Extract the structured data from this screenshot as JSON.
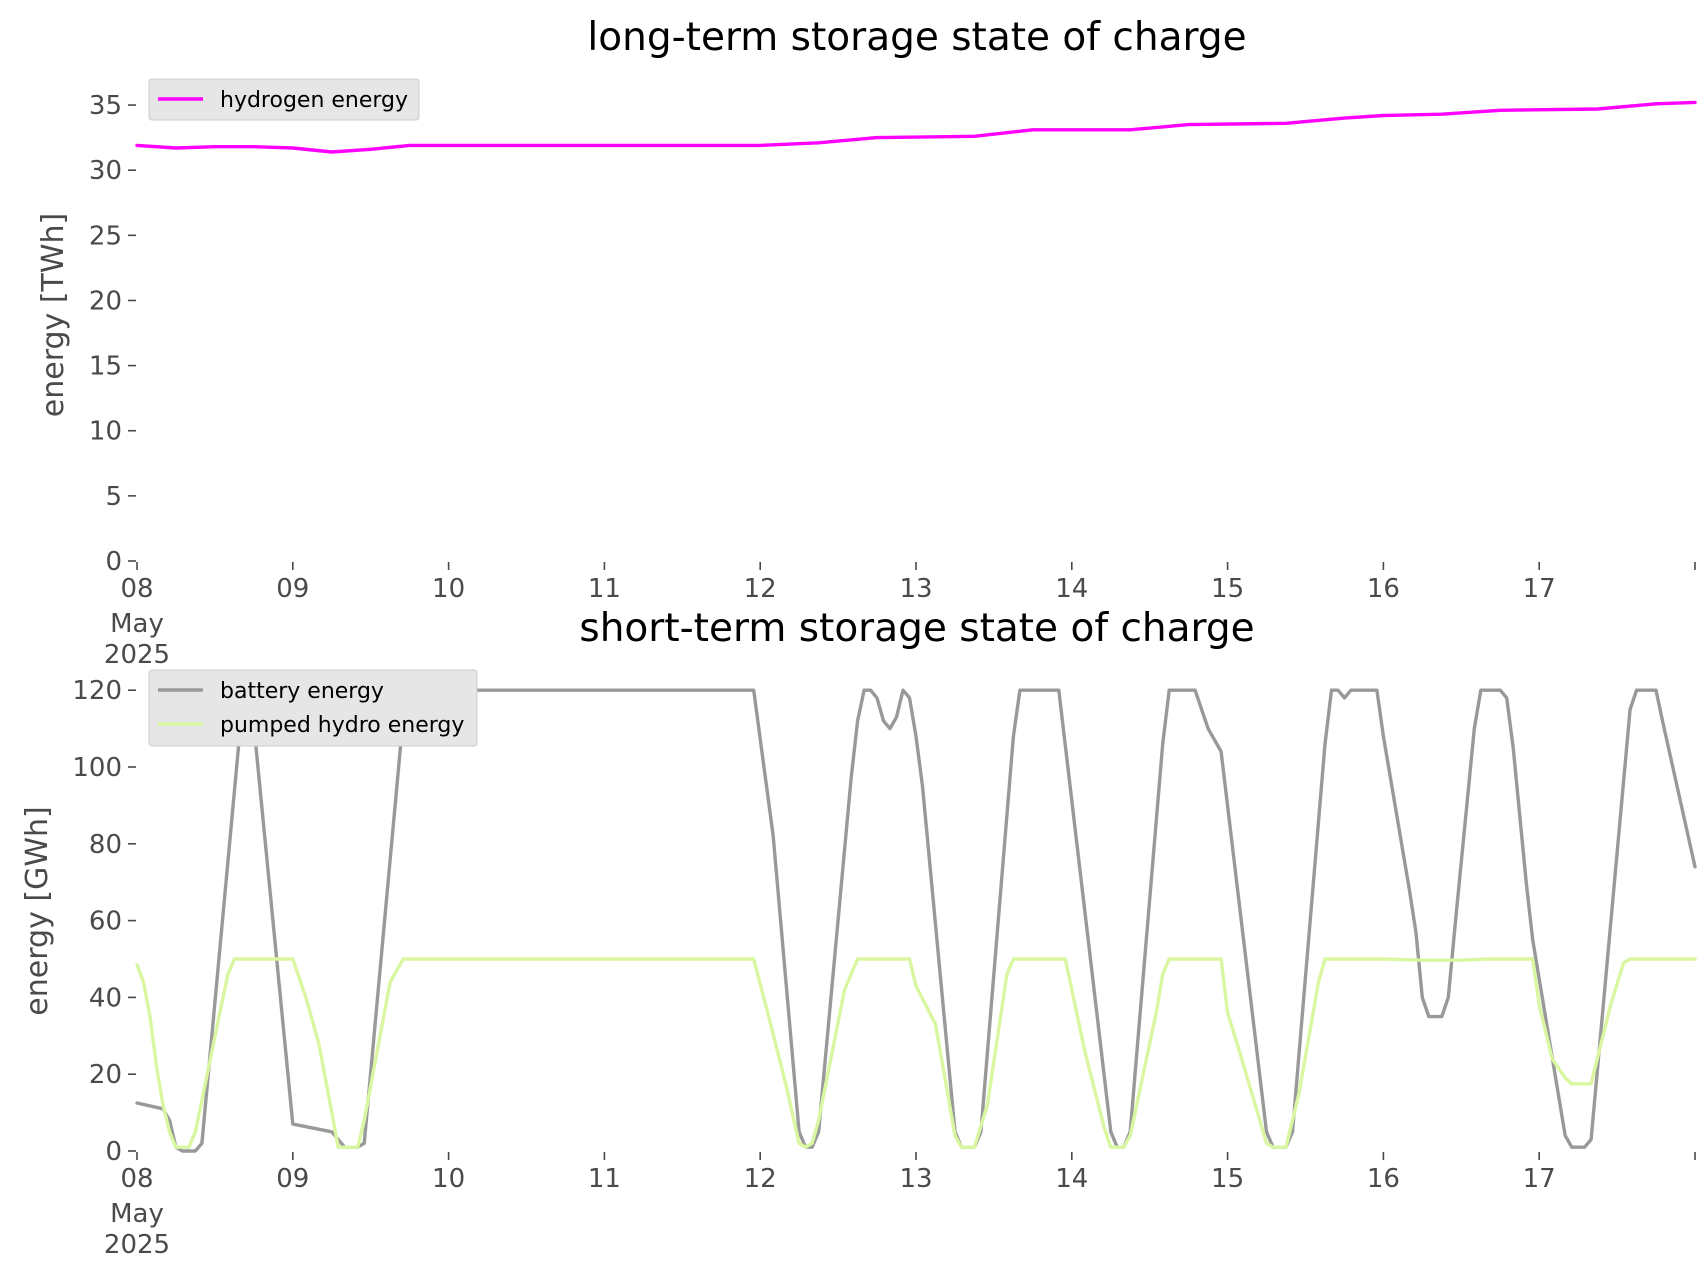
{
  "chart_data": [
    {
      "type": "line",
      "title": "long-term storage state of charge",
      "ylabel": "energy [TWh]",
      "xlabel": "",
      "x_date_range": [
        "2025-05-08T00:00",
        "2025-05-18T00:00"
      ],
      "xticks": [
        {
          "date": "2025-05-08",
          "label": "08",
          "sublabels": [
            "May",
            "2025"
          ]
        },
        {
          "date": "2025-05-09",
          "label": "09"
        },
        {
          "date": "2025-05-10",
          "label": "10"
        },
        {
          "date": "2025-05-11",
          "label": "11"
        },
        {
          "date": "2025-05-12",
          "label": "12"
        },
        {
          "date": "2025-05-13",
          "label": "13"
        },
        {
          "date": "2025-05-14",
          "label": "14"
        },
        {
          "date": "2025-05-15",
          "label": "15"
        },
        {
          "date": "2025-05-16",
          "label": "16"
        },
        {
          "date": "2025-05-17",
          "label": "17"
        },
        {
          "date": "2025-05-18",
          "label": ""
        }
      ],
      "ylim": [
        0,
        37
      ],
      "yticks": [
        0,
        5,
        10,
        15,
        20,
        25,
        30,
        35
      ],
      "grid": false,
      "legend_position": "upper-left",
      "series": [
        {
          "name": "hydrogen energy",
          "color": "#ff00ff",
          "points": [
            [
              "2025-05-08T00:00",
              31.9
            ],
            [
              "2025-05-08T06:00",
              31.7
            ],
            [
              "2025-05-08T12:00",
              31.8
            ],
            [
              "2025-05-08T18:00",
              31.8
            ],
            [
              "2025-05-09T00:00",
              31.7
            ],
            [
              "2025-05-09T06:00",
              31.4
            ],
            [
              "2025-05-09T12:00",
              31.6
            ],
            [
              "2025-05-09T18:00",
              31.9
            ],
            [
              "2025-05-10T00:00",
              31.9
            ],
            [
              "2025-05-11T00:00",
              31.9
            ],
            [
              "2025-05-12T00:00",
              31.9
            ],
            [
              "2025-05-12T09:00",
              32.1
            ],
            [
              "2025-05-12T18:00",
              32.5
            ],
            [
              "2025-05-13T09:00",
              32.6
            ],
            [
              "2025-05-13T18:00",
              33.1
            ],
            [
              "2025-05-14T09:00",
              33.1
            ],
            [
              "2025-05-14T18:00",
              33.5
            ],
            [
              "2025-05-15T09:00",
              33.6
            ],
            [
              "2025-05-15T18:00",
              34.0
            ],
            [
              "2025-05-16T00:00",
              34.2
            ],
            [
              "2025-05-16T09:00",
              34.3
            ],
            [
              "2025-05-16T18:00",
              34.6
            ],
            [
              "2025-05-17T09:00",
              34.7
            ],
            [
              "2025-05-17T18:00",
              35.1
            ],
            [
              "2025-05-18T00:00",
              35.2
            ]
          ]
        }
      ]
    },
    {
      "type": "line",
      "title": "short-term storage state of charge",
      "ylabel": "energy [GWh]",
      "xlabel": "",
      "x_date_range": [
        "2025-05-08T00:00",
        "2025-05-18T00:00"
      ],
      "xticks": [
        {
          "date": "2025-05-08",
          "label": "08",
          "sublabels": [
            "May",
            "2025"
          ]
        },
        {
          "date": "2025-05-09",
          "label": "09"
        },
        {
          "date": "2025-05-10",
          "label": "10"
        },
        {
          "date": "2025-05-11",
          "label": "11"
        },
        {
          "date": "2025-05-12",
          "label": "12"
        },
        {
          "date": "2025-05-13",
          "label": "13"
        },
        {
          "date": "2025-05-14",
          "label": "14"
        },
        {
          "date": "2025-05-15",
          "label": "15"
        },
        {
          "date": "2025-05-16",
          "label": "16"
        },
        {
          "date": "2025-05-17",
          "label": "17"
        },
        {
          "date": "2025-05-18",
          "label": ""
        }
      ],
      "ylim": [
        0,
        125
      ],
      "yticks": [
        0,
        20,
        40,
        60,
        80,
        100,
        120
      ],
      "grid": false,
      "legend_position": "upper-left",
      "series": [
        {
          "name": "battery energy",
          "color": "#999999",
          "points": [
            [
              "2025-05-08T00:00",
              12.5
            ],
            [
              "2025-05-08T04:00",
              11
            ],
            [
              "2025-05-08T05:00",
              8
            ],
            [
              "2025-05-08T06:00",
              1
            ],
            [
              "2025-05-08T07:00",
              0
            ],
            [
              "2025-05-08T09:00",
              0
            ],
            [
              "2025-05-08T10:00",
              2
            ],
            [
              "2025-05-08T16:00",
              112
            ],
            [
              "2025-05-08T17:00",
              120
            ],
            [
              "2025-05-08T18:00",
              111
            ],
            [
              "2025-05-09T00:00",
              7
            ],
            [
              "2025-05-09T06:00",
              5
            ],
            [
              "2025-05-09T08:00",
              1
            ],
            [
              "2025-05-09T10:00",
              1
            ],
            [
              "2025-05-09T11:00",
              2
            ],
            [
              "2025-05-09T17:00",
              113
            ],
            [
              "2025-05-09T18:00",
              120
            ],
            [
              "2025-05-11T23:00",
              120
            ],
            [
              "2025-05-12T02:00",
              82
            ],
            [
              "2025-05-12T06:00",
              5
            ],
            [
              "2025-05-12T07:00",
              1
            ],
            [
              "2025-05-12T08:00",
              1
            ],
            [
              "2025-05-12T09:00",
              5
            ],
            [
              "2025-05-12T14:00",
              97
            ],
            [
              "2025-05-12T15:00",
              112
            ],
            [
              "2025-05-12T16:00",
              120
            ],
            [
              "2025-05-12T17:00",
              120
            ],
            [
              "2025-05-12T18:00",
              118
            ],
            [
              "2025-05-12T19:00",
              112
            ],
            [
              "2025-05-12T20:00",
              110
            ],
            [
              "2025-05-12T21:00",
              113
            ],
            [
              "2025-05-12T22:00",
              120
            ],
            [
              "2025-05-12T23:00",
              118
            ],
            [
              "2025-05-13T00:00",
              108
            ],
            [
              "2025-05-13T01:00",
              95
            ],
            [
              "2025-05-13T06:00",
              5
            ],
            [
              "2025-05-13T07:00",
              1
            ],
            [
              "2025-05-13T09:00",
              1
            ],
            [
              "2025-05-13T10:00",
              5
            ],
            [
              "2025-05-13T15:00",
              108
            ],
            [
              "2025-05-13T16:00",
              120
            ],
            [
              "2025-05-13T22:00",
              120
            ],
            [
              "2025-05-14T06:00",
              5
            ],
            [
              "2025-05-14T07:00",
              1
            ],
            [
              "2025-05-14T08:00",
              1
            ],
            [
              "2025-05-14T09:00",
              5
            ],
            [
              "2025-05-14T14:00",
              106
            ],
            [
              "2025-05-14T15:00",
              120
            ],
            [
              "2025-05-14T19:00",
              120
            ],
            [
              "2025-05-14T21:00",
              110
            ],
            [
              "2025-05-14T23:00",
              104
            ],
            [
              "2025-05-15T06:00",
              5
            ],
            [
              "2025-05-15T07:00",
              1
            ],
            [
              "2025-05-15T09:00",
              1
            ],
            [
              "2025-05-15T10:00",
              5
            ],
            [
              "2025-05-15T15:00",
              106
            ],
            [
              "2025-05-15T16:00",
              120
            ],
            [
              "2025-05-15T17:00",
              120
            ],
            [
              "2025-05-15T18:00",
              118
            ],
            [
              "2025-05-15T19:00",
              120
            ],
            [
              "2025-05-15T23:00",
              120
            ],
            [
              "2025-05-16T00:00",
              108
            ],
            [
              "2025-05-16T02:00",
              88
            ],
            [
              "2025-05-16T04:00",
              68
            ],
            [
              "2025-05-16T05:00",
              57
            ],
            [
              "2025-05-16T06:00",
              40
            ],
            [
              "2025-05-16T07:00",
              35
            ],
            [
              "2025-05-16T09:00",
              35
            ],
            [
              "2025-05-16T10:00",
              40
            ],
            [
              "2025-05-16T11:00",
              58
            ],
            [
              "2025-05-16T14:00",
              110
            ],
            [
              "2025-05-16T15:00",
              120
            ],
            [
              "2025-05-16T18:00",
              120
            ],
            [
              "2025-05-16T19:00",
              118
            ],
            [
              "2025-05-16T20:00",
              105
            ],
            [
              "2025-05-16T22:00",
              70
            ],
            [
              "2025-05-16T23:00",
              55
            ],
            [
              "2025-05-17T04:00",
              4
            ],
            [
              "2025-05-17T05:00",
              1
            ],
            [
              "2025-05-17T07:00",
              1
            ],
            [
              "2025-05-17T08:00",
              3
            ],
            [
              "2025-05-17T14:00",
              115
            ],
            [
              "2025-05-17T15:00",
              120
            ],
            [
              "2025-05-17T18:00",
              120
            ],
            [
              "2025-05-17T19:00",
              112
            ],
            [
              "2025-05-18T00:00",
              74
            ]
          ]
        },
        {
          "name": "pumped hydro energy",
          "color": "#d9f7a0",
          "points": [
            [
              "2025-05-08T00:00",
              48.5
            ],
            [
              "2025-05-08T01:00",
              44
            ],
            [
              "2025-05-08T02:00",
              35
            ],
            [
              "2025-05-08T03:00",
              22
            ],
            [
              "2025-05-08T04:00",
              12
            ],
            [
              "2025-05-08T05:00",
              5
            ],
            [
              "2025-05-08T06:00",
              1
            ],
            [
              "2025-05-08T08:00",
              1
            ],
            [
              "2025-05-08T09:00",
              5
            ],
            [
              "2025-05-08T13:00",
              38
            ],
            [
              "2025-05-08T14:00",
              46
            ],
            [
              "2025-05-08T15:00",
              50
            ],
            [
              "2025-05-09T00:00",
              50
            ],
            [
              "2025-05-09T02:00",
              40
            ],
            [
              "2025-05-09T04:00",
              28
            ],
            [
              "2025-05-09T06:00",
              10
            ],
            [
              "2025-05-09T07:00",
              1
            ],
            [
              "2025-05-09T10:00",
              1
            ],
            [
              "2025-05-09T11:00",
              8
            ],
            [
              "2025-05-09T15:00",
              44
            ],
            [
              "2025-05-09T17:00",
              50
            ],
            [
              "2025-05-11T23:00",
              50
            ],
            [
              "2025-05-12T01:00",
              37
            ],
            [
              "2025-05-12T04:00",
              17
            ],
            [
              "2025-05-12T06:00",
              2
            ],
            [
              "2025-05-12T07:00",
              1
            ],
            [
              "2025-05-12T08:00",
              2
            ],
            [
              "2025-05-12T09:00",
              8
            ],
            [
              "2025-05-12T13:00",
              42
            ],
            [
              "2025-05-12T15:00",
              50
            ],
            [
              "2025-05-12T23:00",
              50
            ],
            [
              "2025-05-13T00:00",
              43
            ],
            [
              "2025-05-13T03:00",
              33
            ],
            [
              "2025-05-13T06:00",
              4
            ],
            [
              "2025-05-13T07:00",
              1
            ],
            [
              "2025-05-13T09:00",
              1
            ],
            [
              "2025-05-13T11:00",
              12
            ],
            [
              "2025-05-13T14:00",
              46
            ],
            [
              "2025-05-13T15:00",
              50
            ],
            [
              "2025-05-13T23:00",
              50
            ],
            [
              "2025-05-14T02:00",
              26
            ],
            [
              "2025-05-14T05:00",
              6
            ],
            [
              "2025-05-14T06:00",
              1
            ],
            [
              "2025-05-14T08:00",
              1
            ],
            [
              "2025-05-14T09:00",
              4
            ],
            [
              "2025-05-14T13:00",
              36
            ],
            [
              "2025-05-14T14:00",
              46
            ],
            [
              "2025-05-14T15:00",
              50
            ],
            [
              "2025-05-14T23:00",
              50
            ],
            [
              "2025-05-15T00:00",
              36
            ],
            [
              "2025-05-15T02:00",
              25
            ],
            [
              "2025-05-15T06:00",
              2
            ],
            [
              "2025-05-15T07:00",
              1
            ],
            [
              "2025-05-15T09:00",
              1
            ],
            [
              "2025-05-15T11:00",
              15
            ],
            [
              "2025-05-15T14:00",
              44
            ],
            [
              "2025-05-15T15:00",
              50
            ],
            [
              "2025-05-16T00:00",
              50
            ],
            [
              "2025-05-16T06:00",
              49.7
            ],
            [
              "2025-05-16T12:00",
              49.7
            ],
            [
              "2025-05-16T16:00",
              50
            ],
            [
              "2025-05-16T23:00",
              50
            ],
            [
              "2025-05-17T00:00",
              38
            ],
            [
              "2025-05-17T02:00",
              24
            ],
            [
              "2025-05-17T04:00",
              19
            ],
            [
              "2025-05-17T05:00",
              17.5
            ],
            [
              "2025-05-17T08:00",
              17.5
            ],
            [
              "2025-05-17T11:00",
              38
            ],
            [
              "2025-05-17T13:00",
              49
            ],
            [
              "2025-05-17T14:00",
              50
            ],
            [
              "2025-05-18T00:00",
              50
            ]
          ]
        }
      ]
    }
  ]
}
